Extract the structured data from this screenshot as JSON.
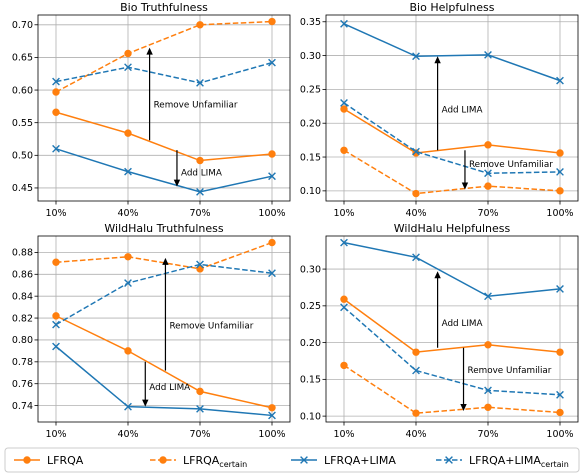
{
  "colors": {
    "orange": "#ff7f0e",
    "blue": "#1f77b4"
  },
  "legend": [
    {
      "label": "LFRQA",
      "sub": "",
      "color": "#ff7f0e",
      "dash": false,
      "marker": "circle"
    },
    {
      "label": "LFRQA",
      "sub": "certain",
      "color": "#ff7f0e",
      "dash": true,
      "marker": "circle"
    },
    {
      "label": "LFRQA+LIMA",
      "sub": "",
      "color": "#1f77b4",
      "dash": false,
      "marker": "x"
    },
    {
      "label": "LFRQA+LIMA",
      "sub": "certain",
      "color": "#1f77b4",
      "dash": true,
      "marker": "x"
    }
  ],
  "chart_data": [
    {
      "type": "line",
      "title": "Bio Truthfulness",
      "categories": [
        "10%",
        "40%",
        "70%",
        "100%"
      ],
      "ylim": [
        0.43,
        0.715
      ],
      "yticks": [
        "0.45",
        "0.50",
        "0.55",
        "0.60",
        "0.65",
        "0.70"
      ],
      "ytick_values": [
        0.45,
        0.5,
        0.55,
        0.6,
        0.65,
        0.7
      ],
      "grid": true,
      "series": [
        {
          "name": "LFRQA",
          "values": [
            0.566,
            0.534,
            0.492,
            0.502
          ]
        },
        {
          "name": "LFRQA_certain",
          "values": [
            0.597,
            0.656,
            0.7,
            0.705
          ]
        },
        {
          "name": "LFRQA+LIMA",
          "values": [
            0.51,
            0.475,
            0.444,
            0.468
          ]
        },
        {
          "name": "LFRQA+LIMA_certain",
          "values": [
            0.613,
            0.635,
            0.611,
            0.642
          ]
        }
      ],
      "annotations": [
        {
          "label": "Remove Unfamiliar",
          "x": 1.3,
          "y_from": 0.523,
          "y_to": 0.665,
          "label_y": 0.578,
          "label_side": "right"
        },
        {
          "label": "Add LIMA",
          "x": 1.68,
          "y_from": 0.508,
          "y_to": 0.452,
          "label_y": 0.474,
          "label_side": "right"
        }
      ]
    },
    {
      "type": "line",
      "title": "Bio Helpfulness",
      "categories": [
        "10%",
        "40%",
        "70%",
        "100%"
      ],
      "ylim": [
        0.085,
        0.36
      ],
      "yticks": [
        "0.10",
        "0.15",
        "0.20",
        "0.25",
        "0.30",
        "0.35"
      ],
      "ytick_values": [
        0.1,
        0.15,
        0.2,
        0.25,
        0.3,
        0.35
      ],
      "grid": true,
      "series": [
        {
          "name": "LFRQA",
          "values": [
            0.221,
            0.156,
            0.168,
            0.156
          ]
        },
        {
          "name": "LFRQA_certain",
          "values": [
            0.16,
            0.096,
            0.107,
            0.1
          ]
        },
        {
          "name": "LFRQA+LIMA",
          "values": [
            0.347,
            0.299,
            0.301,
            0.263
          ]
        },
        {
          "name": "LFRQA+LIMA_certain",
          "values": [
            0.23,
            0.158,
            0.126,
            0.128
          ]
        }
      ],
      "annotations": [
        {
          "label": "Add LIMA",
          "x": 1.3,
          "y_from": 0.16,
          "y_to": 0.299,
          "label_y": 0.22,
          "label_side": "right"
        },
        {
          "label": "Remove Unfamiliar",
          "x": 1.68,
          "y_from": 0.16,
          "y_to": 0.102,
          "label_y": 0.14,
          "label_side": "right"
        }
      ]
    },
    {
      "type": "line",
      "title": "WildHalu Truthfulness",
      "categories": [
        "10%",
        "40%",
        "70%",
        "100%"
      ],
      "ylim": [
        0.725,
        0.895
      ],
      "yticks": [
        "0.74",
        "0.76",
        "0.78",
        "0.80",
        "0.82",
        "0.84",
        "0.86",
        "0.88"
      ],
      "ytick_values": [
        0.74,
        0.76,
        0.78,
        0.8,
        0.82,
        0.84,
        0.86,
        0.88
      ],
      "grid": true,
      "series": [
        {
          "name": "LFRQA",
          "values": [
            0.822,
            0.79,
            0.753,
            0.738
          ]
        },
        {
          "name": "LFRQA_certain",
          "values": [
            0.871,
            0.876,
            0.865,
            0.889
          ]
        },
        {
          "name": "LFRQA+LIMA",
          "values": [
            0.794,
            0.739,
            0.737,
            0.731
          ]
        },
        {
          "name": "LFRQA+LIMA_certain",
          "values": [
            0.814,
            0.852,
            0.869,
            0.861
          ]
        }
      ],
      "annotations": [
        {
          "label": "Remove Unfamiliar",
          "x": 1.52,
          "y_from": 0.772,
          "y_to": 0.875,
          "label_y": 0.813,
          "label_side": "right"
        },
        {
          "label": "Add LIMA",
          "x": 1.24,
          "y_from": 0.78,
          "y_to": 0.739,
          "label_y": 0.757,
          "label_side": "right"
        }
      ]
    },
    {
      "type": "line",
      "title": "WildHalu Helpfulness",
      "categories": [
        "10%",
        "40%",
        "70%",
        "100%"
      ],
      "ylim": [
        0.092,
        0.345
      ],
      "yticks": [
        "0.10",
        "0.15",
        "0.20",
        "0.25",
        "0.30"
      ],
      "ytick_values": [
        0.1,
        0.15,
        0.2,
        0.25,
        0.3
      ],
      "grid": true,
      "series": [
        {
          "name": "LFRQA",
          "values": [
            0.259,
            0.187,
            0.197,
            0.187
          ]
        },
        {
          "name": "LFRQA_certain",
          "values": [
            0.169,
            0.104,
            0.112,
            0.105
          ]
        },
        {
          "name": "LFRQA+LIMA",
          "values": [
            0.336,
            0.316,
            0.263,
            0.273
          ]
        },
        {
          "name": "LFRQA+LIMA_certain",
          "values": [
            0.248,
            0.162,
            0.135,
            0.129
          ]
        }
      ],
      "annotations": [
        {
          "label": "Add LIMA",
          "x": 1.3,
          "y_from": 0.193,
          "y_to": 0.297,
          "label_y": 0.227,
          "label_side": "right"
        },
        {
          "label": "Remove Unfamiliar",
          "x": 1.66,
          "y_from": 0.193,
          "y_to": 0.107,
          "label_y": 0.163,
          "label_side": "right"
        }
      ]
    }
  ]
}
